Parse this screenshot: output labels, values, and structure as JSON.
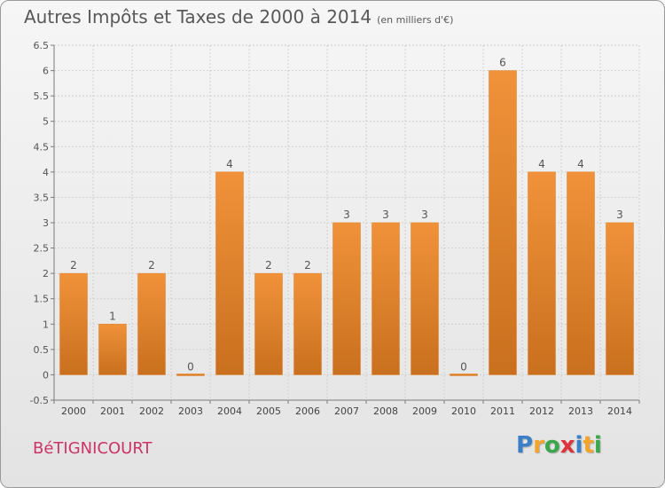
{
  "title": "Autres Impôts et Taxes de 2000 à 2014",
  "unit": "(en milliers d'€)",
  "place_name": "BéTIGNICOURT",
  "logo": {
    "letters": [
      "P",
      "r",
      "o",
      "x",
      "i",
      "t",
      "i"
    ],
    "colors": [
      "#3b7fc9",
      "#f2a52a",
      "#3aa84a",
      "#e0323a",
      "#3b7fc9",
      "#f2a52a",
      "#3aa84a"
    ]
  },
  "chart_data": {
    "type": "bar",
    "categories": [
      "2000",
      "2001",
      "2002",
      "2003",
      "2004",
      "2005",
      "2006",
      "2007",
      "2008",
      "2009",
      "2010",
      "2011",
      "2012",
      "2013",
      "2014"
    ],
    "values": [
      2,
      1,
      2,
      0,
      4,
      2,
      2,
      3,
      3,
      3,
      0,
      6,
      4,
      4,
      3
    ],
    "data_labels": [
      "2",
      "1",
      "2",
      "0",
      "4",
      "2",
      "2",
      "3",
      "3",
      "3",
      "0",
      "6",
      "4",
      "4",
      "3"
    ],
    "y_ticks": [
      "-0.5",
      "0",
      "0.5",
      "1",
      "1.5",
      "2",
      "2.5",
      "3",
      "3.5",
      "4",
      "4.5",
      "5",
      "5.5",
      "6",
      "6.5"
    ],
    "ylim": [
      -0.5,
      6.5
    ],
    "grid": true,
    "bar_color": "#f0923a",
    "bar_color_dark": "#c9701e"
  }
}
